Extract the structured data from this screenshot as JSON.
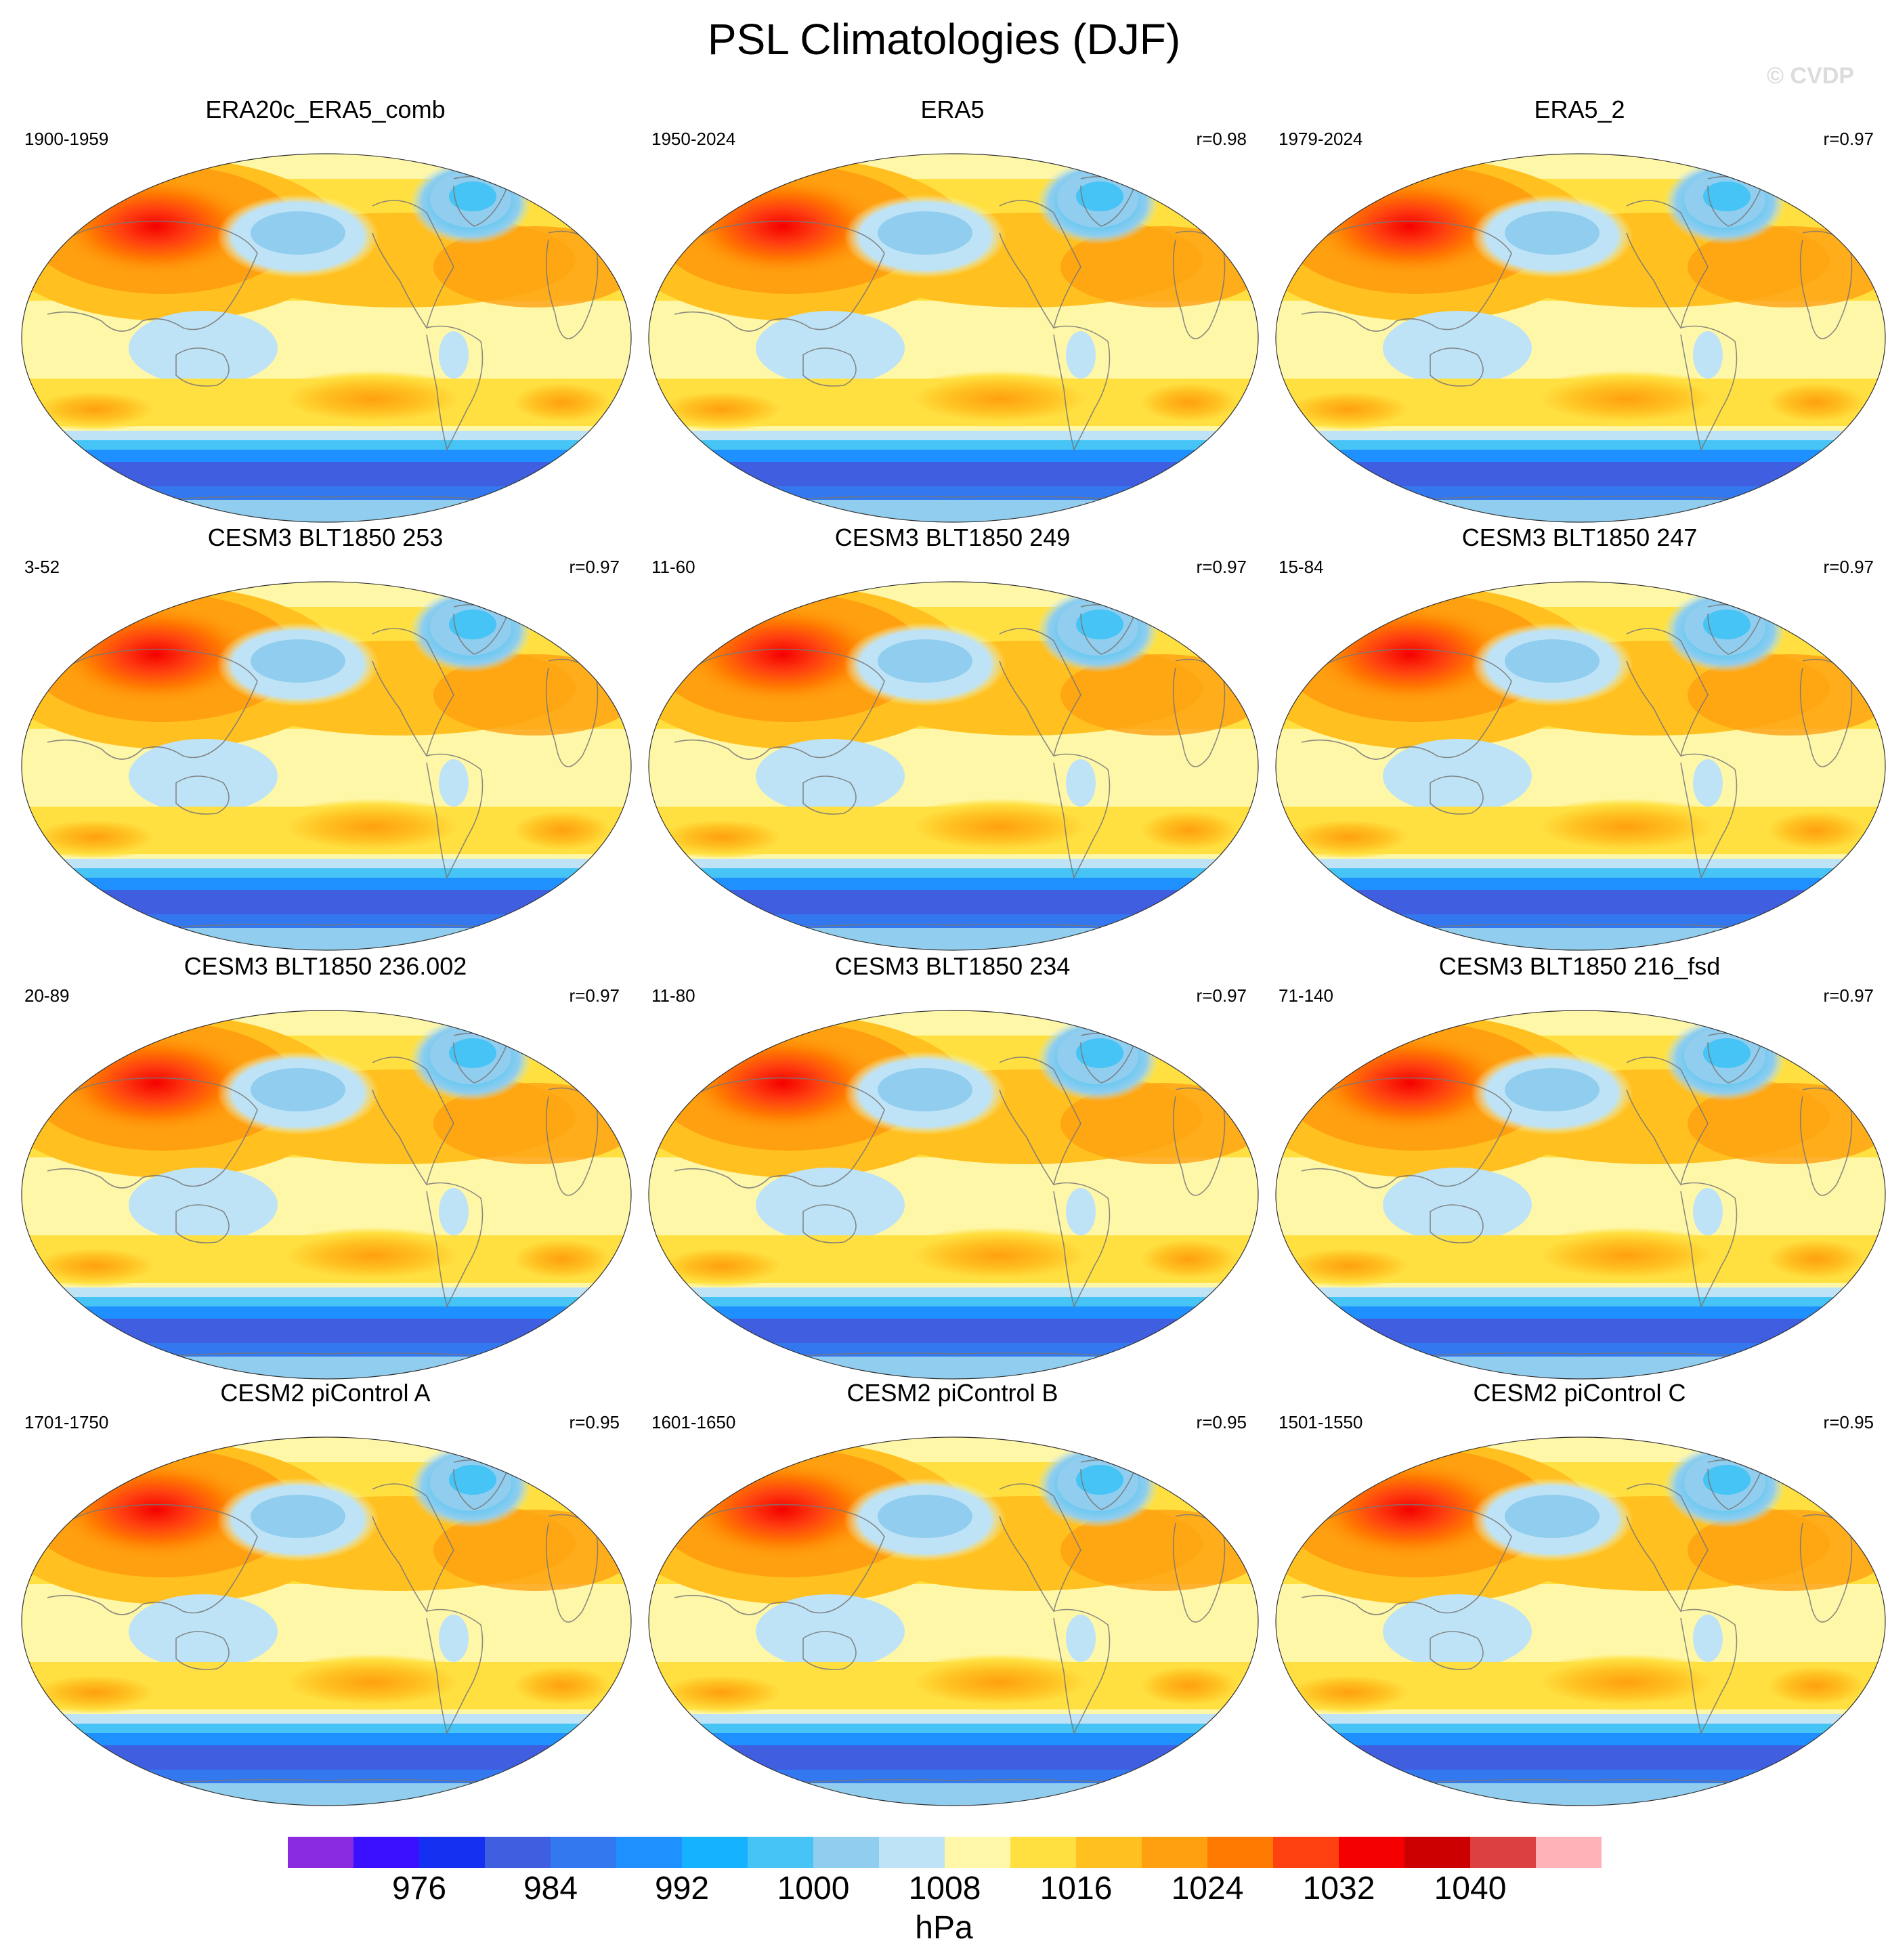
{
  "title": "PSL Climatologies (DJF)",
  "watermark": "© CVDP",
  "units": "hPa",
  "colorbar": {
    "colors": [
      "#8a2be2",
      "#3a10ff",
      "#1530f0",
      "#3f5ee0",
      "#3478f0",
      "#1e90ff",
      "#15b2ff",
      "#45c4f5",
      "#90cdee",
      "#bfe3f6",
      "#fff7a8",
      "#ffe040",
      "#ffc020",
      "#ffa010",
      "#ff7a00",
      "#ff4010",
      "#f50000",
      "#cc0000",
      "#dd4040",
      "#ffb3b8"
    ],
    "labels": [
      "976",
      "984",
      "992",
      "1000",
      "1008",
      "1016",
      "1024",
      "1032",
      "1040"
    ]
  },
  "panels": [
    {
      "title": "ERA20c_ERA5_comb",
      "period": "1900-1959",
      "r": ""
    },
    {
      "title": "ERA5",
      "period": "1950-2024",
      "r": "r=0.98"
    },
    {
      "title": "ERA5_2",
      "period": "1979-2024",
      "r": "r=0.97"
    },
    {
      "title": "CESM3 BLT1850 253",
      "period": "3-52",
      "r": "r=0.97"
    },
    {
      "title": "CESM3 BLT1850 249",
      "period": "11-60",
      "r": "r=0.97"
    },
    {
      "title": "CESM3 BLT1850 247",
      "period": "15-84",
      "r": "r=0.97"
    },
    {
      "title": "CESM3 BLT1850 236.002",
      "period": "20-89",
      "r": "r=0.97"
    },
    {
      "title": "CESM3 BLT1850 234",
      "period": "11-80",
      "r": "r=0.97"
    },
    {
      "title": "CESM3 BLT1850 216_fsd",
      "period": "71-140",
      "r": "r=0.97"
    },
    {
      "title": "CESM2 piControl A",
      "period": "1701-1750",
      "r": "r=0.95"
    },
    {
      "title": "CESM2 piControl B",
      "period": "1601-1650",
      "r": "r=0.95"
    },
    {
      "title": "CESM2 piControl C",
      "period": "1501-1550",
      "r": "r=0.95"
    }
  ]
}
